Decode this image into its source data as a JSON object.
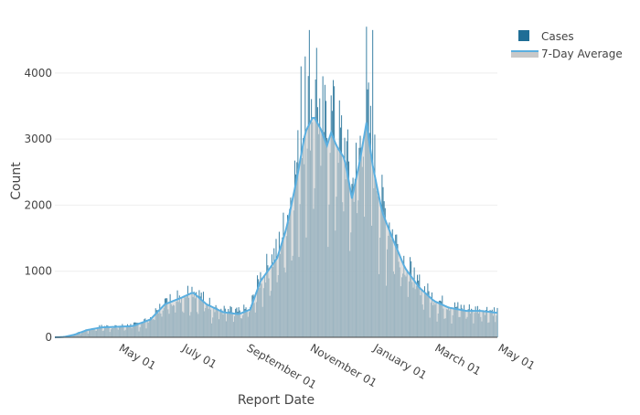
{
  "chart_data": {
    "type": "bar",
    "title": "",
    "xlabel": "Report Date",
    "ylabel": "Count",
    "x_range": [
      "2020-03-01",
      "2021-05-01"
    ],
    "ylim": [
      0,
      4800
    ],
    "y_ticks": [
      0,
      1000,
      2000,
      3000,
      4000
    ],
    "x_ticks": [
      {
        "date": "2020-05-01",
        "label": "May 01"
      },
      {
        "date": "2020-07-01",
        "label": "July 01"
      },
      {
        "date": "2020-09-01",
        "label": "September 01"
      },
      {
        "date": "2020-11-01",
        "label": "November 01"
      },
      {
        "date": "2021-01-01",
        "label": "January 01"
      },
      {
        "date": "2021-03-01",
        "label": "March 01"
      },
      {
        "date": "2021-05-01",
        "label": "May 01"
      }
    ],
    "grid": true,
    "legend_position": "top-right",
    "series": [
      {
        "name": "Cases",
        "kind": "bar",
        "color": "#1f6e96"
      },
      {
        "name": "7-Day Average",
        "kind": "line-area",
        "color": "#5aafe0",
        "fill": "#c8c8c8"
      }
    ],
    "seven_day_average": [
      [
        "2020-03-01",
        0
      ],
      [
        "2020-03-10",
        5
      ],
      [
        "2020-03-20",
        40
      ],
      [
        "2020-04-01",
        110
      ],
      [
        "2020-04-15",
        150
      ],
      [
        "2020-05-01",
        160
      ],
      [
        "2020-05-15",
        170
      ],
      [
        "2020-06-01",
        270
      ],
      [
        "2020-06-15",
        500
      ],
      [
        "2020-07-01",
        600
      ],
      [
        "2020-07-12",
        680
      ],
      [
        "2020-07-25",
        500
      ],
      [
        "2020-08-10",
        380
      ],
      [
        "2020-08-25",
        350
      ],
      [
        "2020-09-05",
        420
      ],
      [
        "2020-09-15",
        850
      ],
      [
        "2020-10-01",
        1200
      ],
      [
        "2020-10-10",
        1650
      ],
      [
        "2020-10-20",
        2400
      ],
      [
        "2020-10-28",
        3100
      ],
      [
        "2020-11-05",
        3350
      ],
      [
        "2020-11-12",
        3150
      ],
      [
        "2020-11-18",
        2900
      ],
      [
        "2020-11-22",
        3100
      ],
      [
        "2020-11-27",
        2900
      ],
      [
        "2020-12-05",
        2700
      ],
      [
        "2020-12-12",
        2100
      ],
      [
        "2020-12-20",
        2700
      ],
      [
        "2020-12-26",
        3250
      ],
      [
        "2021-01-01",
        2600
      ],
      [
        "2021-01-10",
        1900
      ],
      [
        "2021-01-20",
        1500
      ],
      [
        "2021-02-01",
        1050
      ],
      [
        "2021-02-15",
        750
      ],
      [
        "2021-03-01",
        550
      ],
      [
        "2021-03-15",
        450
      ],
      [
        "2021-04-01",
        400
      ],
      [
        "2021-04-15",
        400
      ],
      [
        "2021-05-01",
        370
      ]
    ],
    "spikes": [
      [
        "2020-10-24",
        4100
      ],
      [
        "2020-10-28",
        4250
      ],
      [
        "2020-11-01",
        4650
      ],
      [
        "2020-11-08",
        4380
      ],
      [
        "2020-11-14",
        3950
      ],
      [
        "2020-12-26",
        4700
      ],
      [
        "2021-01-01",
        4650
      ],
      [
        "2020-11-25",
        3800
      ]
    ]
  }
}
